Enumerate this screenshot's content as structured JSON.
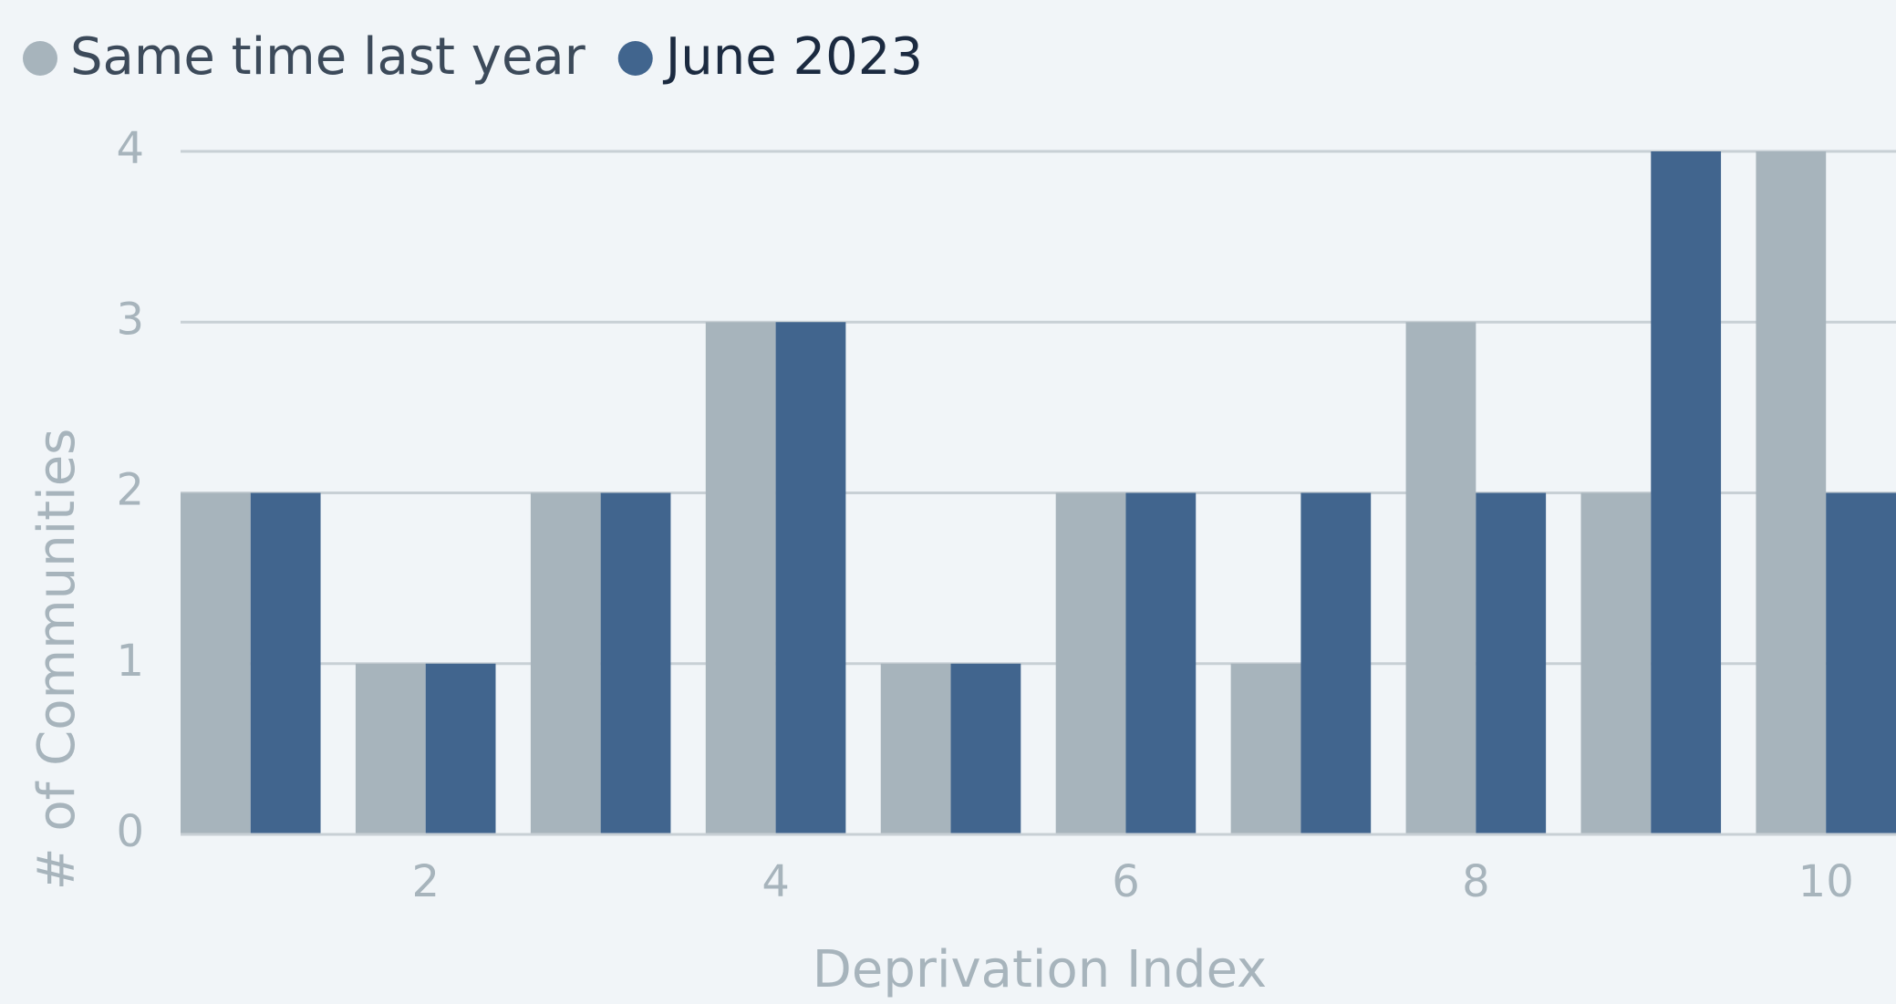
{
  "chart_data": {
    "type": "bar",
    "x_label": "Deprivation Index",
    "y_label": "# of Communities",
    "x": [
      1,
      2,
      3,
      4,
      5,
      6,
      7,
      8,
      9,
      10
    ],
    "series": [
      {
        "name": "Same time last year",
        "color": "#a7b4bc",
        "values": [
          2,
          1,
          2,
          3,
          1,
          2,
          1,
          3,
          2,
          4
        ]
      },
      {
        "name": "June 2023",
        "color": "#41658e",
        "values": [
          2,
          1,
          2,
          3,
          1,
          2,
          2,
          2,
          4,
          2
        ]
      }
    ],
    "xlim": [
      0.6,
      10.4
    ],
    "xticks": [
      2,
      4,
      6,
      8,
      10
    ],
    "ylim": [
      0,
      4
    ],
    "yticks": [
      0,
      1,
      2,
      3,
      4
    ],
    "grid": true,
    "legend": "top-left"
  }
}
